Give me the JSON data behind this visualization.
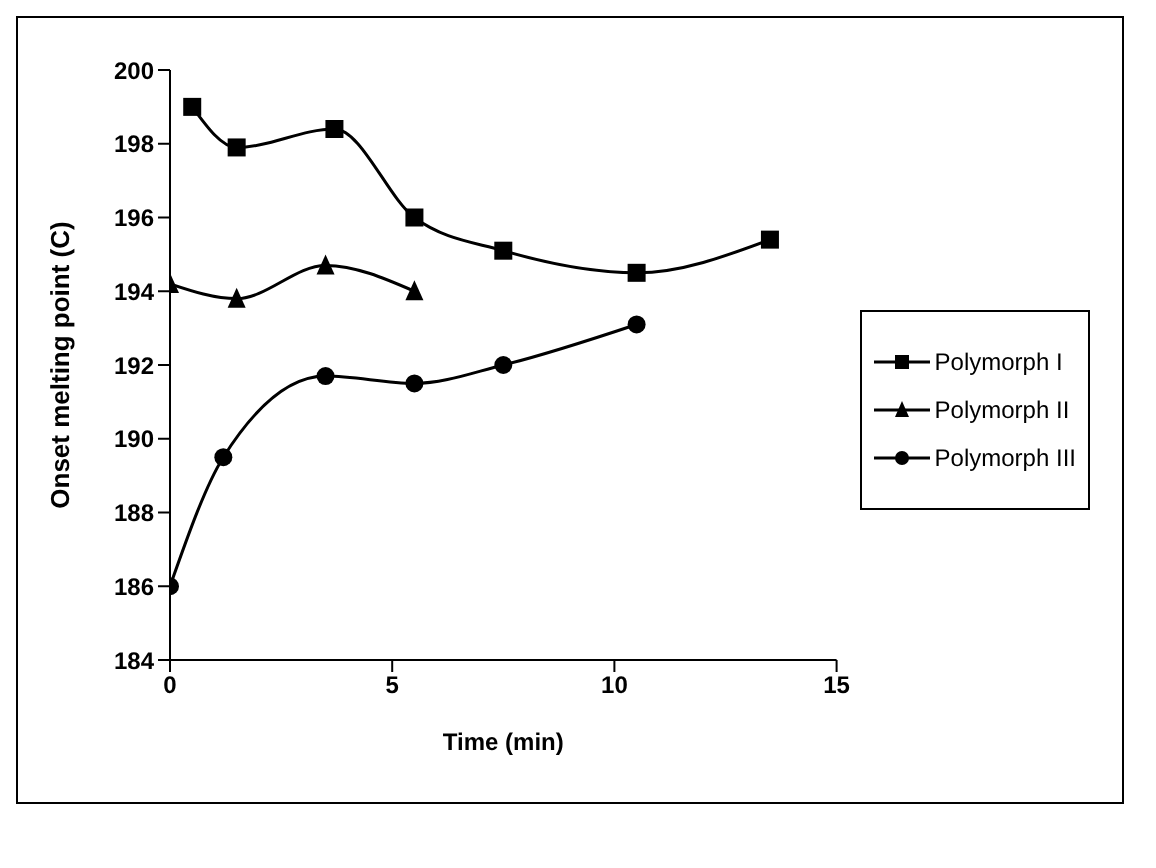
{
  "chart_data": {
    "type": "line",
    "xlabel": "Time (min)",
    "ylabel": "Onset melting point (C)",
    "xlim": [
      0,
      15
    ],
    "xticks": [
      0,
      5,
      10,
      15
    ],
    "ylim": [
      184,
      200
    ],
    "yticks": [
      184,
      186,
      188,
      190,
      192,
      194,
      196,
      198,
      200
    ],
    "grid": false,
    "legend": "right",
    "line_style": "solid",
    "series": [
      {
        "name": "Polymorph I",
        "color": "#000000",
        "marker": "square",
        "x": [
          0.5,
          1.5,
          3.7,
          5.5,
          7.5,
          10.5,
          13.5
        ],
        "values": [
          199,
          197.9,
          198.4,
          196,
          195.1,
          194.5,
          195.4
        ]
      },
      {
        "name": "Polymorph II",
        "color": "#000000",
        "marker": "triangle",
        "x": [
          0,
          1.5,
          3.5,
          5.5
        ],
        "values": [
          194.2,
          193.8,
          194.7,
          194
        ]
      },
      {
        "name": "Polymorph III",
        "color": "#000000",
        "marker": "circle",
        "x": [
          0,
          1.2,
          3.5,
          5.5,
          7.5,
          10.5
        ],
        "values": [
          186,
          189.5,
          191.7,
          191.5,
          192,
          193.1
        ]
      }
    ]
  }
}
